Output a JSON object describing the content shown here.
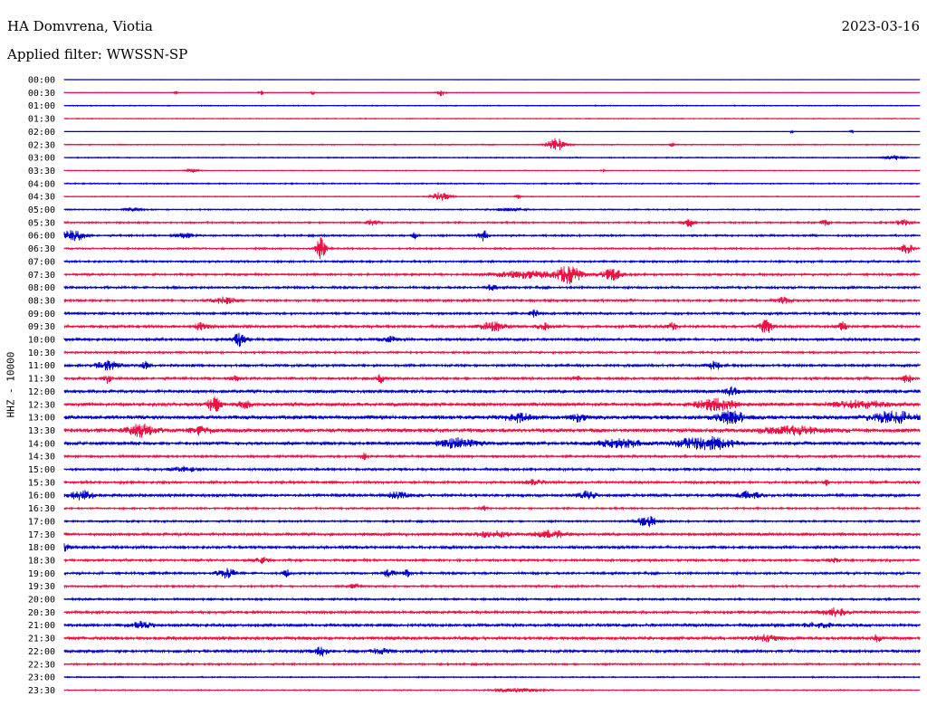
{
  "header": {
    "station": "HA Domvrena, Viotia",
    "filter": "Applied filter: WWSSN-SP",
    "date": "2023-03-16"
  },
  "colors": {
    "blue": "#0000cc",
    "red": "#ee1144"
  },
  "chart_data": {
    "type": "line",
    "title": "HA Domvrena, Viotia",
    "subtitle": "Applied filter: WWSSN-SP",
    "ylabel": "HHZ - 10000",
    "xlabel": "",
    "grid": false,
    "rows": [
      {
        "label": "00:00",
        "color": "blue",
        "noise": 0.25,
        "events": []
      },
      {
        "label": "00:30",
        "color": "red",
        "noise": 0.35,
        "events": [
          [
            0.13,
            2.5,
            2
          ],
          [
            0.23,
            2.5,
            3
          ],
          [
            0.29,
            2.5,
            2
          ],
          [
            0.44,
            4,
            5
          ]
        ]
      },
      {
        "label": "01:00",
        "color": "blue",
        "noise": 0.6,
        "events": []
      },
      {
        "label": "01:30",
        "color": "red",
        "noise": 0.6,
        "events": []
      },
      {
        "label": "02:00",
        "color": "blue",
        "noise": 0.3,
        "events": [
          [
            0.85,
            2,
            2
          ],
          [
            0.92,
            2,
            2
          ]
        ]
      },
      {
        "label": "02:30",
        "color": "red",
        "noise": 0.7,
        "events": [
          [
            0.575,
            7,
            12
          ],
          [
            0.71,
            2.5,
            3
          ]
        ]
      },
      {
        "label": "03:00",
        "color": "blue",
        "noise": 0.7,
        "events": [
          [
            0.97,
            2.5,
            12
          ]
        ]
      },
      {
        "label": "03:30",
        "color": "red",
        "noise": 0.5,
        "events": [
          [
            0.15,
            2,
            8
          ],
          [
            0.63,
            1.5,
            3
          ]
        ]
      },
      {
        "label": "04:00",
        "color": "blue",
        "noise": 0.8,
        "events": []
      },
      {
        "label": "04:30",
        "color": "red",
        "noise": 0.6,
        "events": [
          [
            0.44,
            5,
            12
          ],
          [
            0.53,
            2.5,
            3
          ]
        ]
      },
      {
        "label": "05:00",
        "color": "blue",
        "noise": 0.8,
        "events": [
          [
            0.08,
            2,
            10
          ],
          [
            0.52,
            1.5,
            20
          ]
        ]
      },
      {
        "label": "05:30",
        "color": "red",
        "noise": 1.1,
        "events": [
          [
            0.36,
            3,
            8
          ],
          [
            0.73,
            5,
            6
          ],
          [
            0.89,
            3.5,
            6
          ],
          [
            0.98,
            3,
            10
          ]
        ]
      },
      {
        "label": "06:00",
        "color": "blue",
        "noise": 1.2,
        "events": [
          [
            0.01,
            6,
            15
          ],
          [
            0.14,
            3,
            10
          ],
          [
            0.41,
            4,
            4
          ],
          [
            0.49,
            6,
            6
          ]
        ]
      },
      {
        "label": "06:30",
        "color": "red",
        "noise": 1.1,
        "events": [
          [
            0.3,
            13,
            6
          ],
          [
            0.985,
            6,
            8
          ]
        ]
      },
      {
        "label": "07:00",
        "color": "blue",
        "noise": 1.3,
        "events": []
      },
      {
        "label": "07:30",
        "color": "red",
        "noise": 1.4,
        "events": [
          [
            0.54,
            4,
            40
          ],
          [
            0.59,
            11,
            14
          ],
          [
            0.64,
            6,
            14
          ]
        ]
      },
      {
        "label": "08:00",
        "color": "blue",
        "noise": 1.5,
        "events": [
          [
            0.5,
            3,
            6
          ]
        ]
      },
      {
        "label": "08:30",
        "color": "red",
        "noise": 1.5,
        "events": [
          [
            0.185,
            4,
            15
          ],
          [
            0.84,
            3,
            10
          ]
        ]
      },
      {
        "label": "09:00",
        "color": "blue",
        "noise": 1.5,
        "events": [
          [
            0.55,
            4,
            6
          ]
        ]
      },
      {
        "label": "09:30",
        "color": "red",
        "noise": 1.8,
        "events": [
          [
            0.16,
            4,
            8
          ],
          [
            0.5,
            5,
            15
          ],
          [
            0.56,
            4,
            8
          ],
          [
            0.71,
            4,
            6
          ],
          [
            0.82,
            7,
            8
          ],
          [
            0.91,
            5,
            6
          ]
        ]
      },
      {
        "label": "10:00",
        "color": "blue",
        "noise": 1.8,
        "events": [
          [
            0.205,
            7,
            8
          ],
          [
            0.38,
            3,
            10
          ]
        ]
      },
      {
        "label": "10:30",
        "color": "red",
        "noise": 1.3,
        "events": []
      },
      {
        "label": "11:00",
        "color": "blue",
        "noise": 1.6,
        "events": [
          [
            0.05,
            5,
            15
          ],
          [
            0.095,
            4,
            5
          ],
          [
            0.76,
            5,
            8
          ]
        ]
      },
      {
        "label": "11:30",
        "color": "red",
        "noise": 1.6,
        "events": [
          [
            0.05,
            5,
            4
          ],
          [
            0.2,
            3,
            6
          ],
          [
            0.37,
            5,
            4
          ],
          [
            0.6,
            3,
            6
          ],
          [
            0.985,
            5,
            6
          ]
        ]
      },
      {
        "label": "12:00",
        "color": "blue",
        "noise": 2,
        "events": [
          [
            0.78,
            5,
            8
          ]
        ]
      },
      {
        "label": "12:30",
        "color": "red",
        "noise": 2.3,
        "events": [
          [
            0.175,
            9,
            8
          ],
          [
            0.21,
            4,
            8
          ],
          [
            0.76,
            6,
            25
          ],
          [
            0.93,
            3,
            40
          ]
        ]
      },
      {
        "label": "13:00",
        "color": "blue",
        "noise": 2.5,
        "events": [
          [
            0.53,
            4,
            18
          ],
          [
            0.6,
            4,
            10
          ],
          [
            0.78,
            7,
            20
          ],
          [
            0.97,
            6,
            30
          ]
        ]
      },
      {
        "label": "13:30",
        "color": "red",
        "noise": 2.5,
        "events": [
          [
            0.09,
            7,
            18
          ],
          [
            0.16,
            4,
            16
          ],
          [
            0.85,
            4,
            40
          ]
        ]
      },
      {
        "label": "14:00",
        "color": "blue",
        "noise": 2.2,
        "events": [
          [
            0.46,
            5,
            25
          ],
          [
            0.75,
            7,
            35
          ],
          [
            0.65,
            4,
            30
          ]
        ]
      },
      {
        "label": "14:30",
        "color": "red",
        "noise": 1.5,
        "events": [
          [
            0.35,
            4,
            4
          ]
        ]
      },
      {
        "label": "15:00",
        "color": "blue",
        "noise": 1.5,
        "events": [
          [
            0.14,
            2.5,
            15
          ]
        ]
      },
      {
        "label": "15:30",
        "color": "red",
        "noise": 1.6,
        "events": [
          [
            0.55,
            3,
            12
          ],
          [
            0.89,
            3,
            4
          ]
        ]
      },
      {
        "label": "16:00",
        "color": "blue",
        "noise": 1.8,
        "events": [
          [
            0.02,
            5,
            15
          ],
          [
            0.39,
            4,
            12
          ],
          [
            0.61,
            4,
            12
          ],
          [
            0.8,
            4,
            15
          ]
        ]
      },
      {
        "label": "16:30",
        "color": "red",
        "noise": 1.2,
        "events": [
          [
            0.49,
            3,
            4
          ]
        ]
      },
      {
        "label": "17:00",
        "color": "blue",
        "noise": 1.2,
        "events": [
          [
            0.68,
            7,
            12
          ]
        ]
      },
      {
        "label": "17:30",
        "color": "red",
        "noise": 1.8,
        "events": [
          [
            0.5,
            4,
            20
          ],
          [
            0.57,
            4,
            20
          ]
        ]
      },
      {
        "label": "18:00",
        "color": "blue",
        "noise": 1.8,
        "events": [
          [
            0.0,
            4,
            6
          ]
        ]
      },
      {
        "label": "18:30",
        "color": "red",
        "noise": 1.5,
        "events": [
          [
            0.23,
            3,
            10
          ],
          [
            0.9,
            3,
            6
          ]
        ]
      },
      {
        "label": "19:00",
        "color": "blue",
        "noise": 1.5,
        "events": [
          [
            0.19,
            5,
            12
          ],
          [
            0.26,
            4,
            4
          ],
          [
            0.38,
            4,
            8
          ],
          [
            0.4,
            4,
            4
          ]
        ]
      },
      {
        "label": "19:30",
        "color": "red",
        "noise": 1.3,
        "events": [
          [
            0.34,
            4,
            6
          ]
        ]
      },
      {
        "label": "20:00",
        "color": "blue",
        "noise": 1.3,
        "events": []
      },
      {
        "label": "20:30",
        "color": "red",
        "noise": 1.6,
        "events": [
          [
            0.9,
            4,
            20
          ]
        ]
      },
      {
        "label": "21:00",
        "color": "blue",
        "noise": 2,
        "events": [
          [
            0.09,
            3,
            15
          ],
          [
            0.88,
            3,
            20
          ]
        ]
      },
      {
        "label": "21:30",
        "color": "red",
        "noise": 2,
        "events": [
          [
            0.82,
            3,
            20
          ],
          [
            0.95,
            5,
            5
          ]
        ]
      },
      {
        "label": "22:00",
        "color": "blue",
        "noise": 1.8,
        "events": [
          [
            0.3,
            5,
            10
          ],
          [
            0.37,
            3,
            10
          ]
        ]
      },
      {
        "label": "22:30",
        "color": "red",
        "noise": 1.2,
        "events": []
      },
      {
        "label": "23:00",
        "color": "blue",
        "noise": 0.8,
        "events": []
      },
      {
        "label": "23:30",
        "color": "red",
        "noise": 0.7,
        "events": [
          [
            0.53,
            2,
            30
          ]
        ]
      }
    ]
  }
}
